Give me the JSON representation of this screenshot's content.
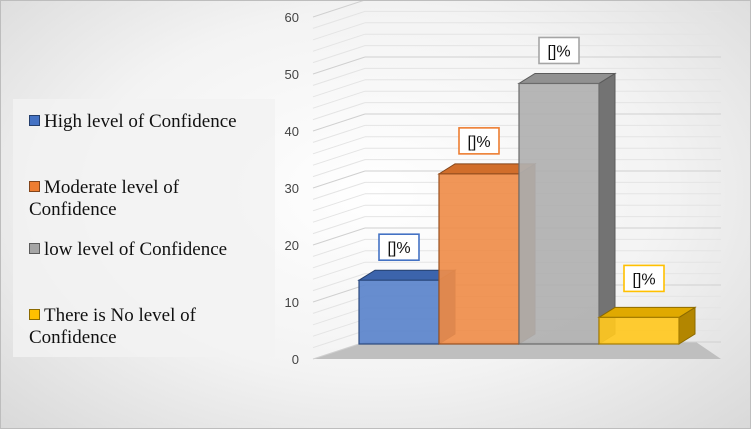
{
  "chart_data": {
    "type": "bar",
    "categories": [
      "High level of Confidence",
      "Moderate level of Confidence",
      "low level of Confidence",
      "There is No level of Confidence"
    ],
    "values": [
      12,
      32,
      49,
      5
    ],
    "data_labels": [
      "[]%",
      "[]%",
      "[]%",
      "[]%"
    ],
    "colors": [
      "#4472C4",
      "#ED7D31",
      "#A5A5A5",
      "#FFC000"
    ],
    "yticks": [
      "0",
      "10",
      "20",
      "30",
      "40",
      "50",
      "60"
    ],
    "ylim": [
      0,
      60
    ],
    "title": "",
    "xlabel": "",
    "ylabel": "",
    "grid": true,
    "legend_position": "left",
    "style": "3d-bar"
  }
}
